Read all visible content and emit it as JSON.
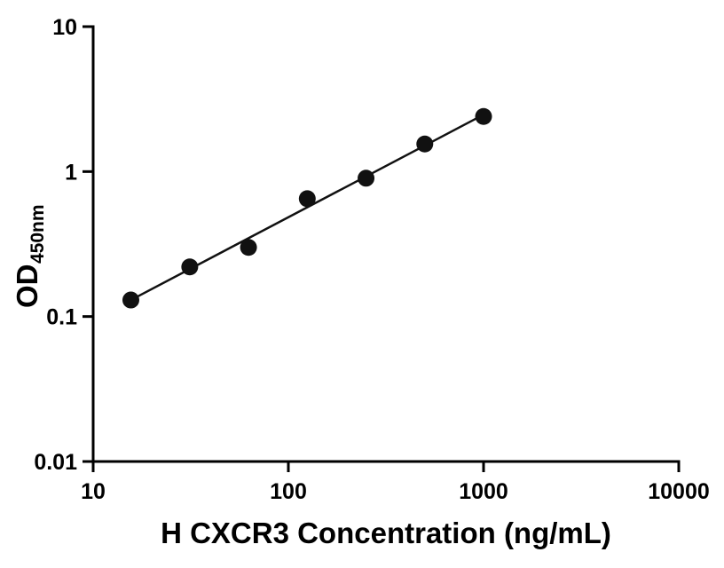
{
  "chart_data": {
    "type": "scatter",
    "title": "",
    "xlabel": "H CXCR3 Concentration (ng/mL)",
    "ylabel_main": "OD",
    "ylabel_sub": "450nm",
    "x_scale": "log",
    "y_scale": "log",
    "xlim": [
      10,
      10000
    ],
    "ylim": [
      0.01,
      10
    ],
    "x_ticks": [
      10,
      100,
      1000,
      10000
    ],
    "x_tick_labels": [
      "10",
      "100",
      "1000",
      "10000"
    ],
    "y_ticks": [
      0.01,
      0.1,
      1,
      10
    ],
    "y_tick_labels": [
      "0.01",
      "0.1",
      "1",
      "10"
    ],
    "points": {
      "x": [
        15.6,
        31.25,
        62.5,
        125,
        250,
        500,
        1000
      ],
      "y": [
        0.13,
        0.22,
        0.3,
        0.65,
        0.9,
        1.55,
        2.4
      ]
    },
    "fit_line": {
      "x": [
        15.6,
        1000
      ],
      "y": [
        0.13,
        2.47
      ]
    },
    "legend": "none",
    "grid": "off",
    "marker_color": "#111111",
    "line_color": "#111111",
    "axis_color": "#000000",
    "background_color": "#ffffff"
  }
}
